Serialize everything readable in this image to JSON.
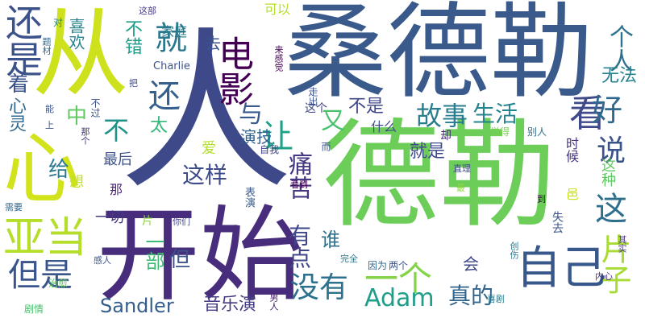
{
  "words": [
    {
      "text": "桑德勒",
      "color": "#3b5a8c",
      "rotated": false
    },
    {
      "text": "德勒",
      "color": "#6cce59",
      "rotated": false
    },
    {
      "text": "人",
      "color": "#3e4989",
      "rotated": false
    },
    {
      "text": "开始",
      "color": "#472d7b",
      "rotated": false
    },
    {
      "text": "从",
      "color": "#cde11d",
      "rotated": false
    },
    {
      "text": "心",
      "color": "#d2e21b",
      "rotated": false
    },
    {
      "text": "亚当",
      "color": "#b5de2b",
      "rotated": false
    },
    {
      "text": "还是",
      "color": "#3b528b",
      "rotated": true
    },
    {
      "text": "电影",
      "color": "#440154",
      "rotated": true
    },
    {
      "text": "就",
      "color": "#2a788e",
      "rotated": false
    },
    {
      "text": "还",
      "color": "#35608d",
      "rotated": false
    },
    {
      "text": "让",
      "color": "#1fa187",
      "rotated": true
    },
    {
      "text": "不",
      "color": "#21918c",
      "rotated": false
    },
    {
      "text": "自己",
      "color": "#38588c",
      "rotated": false
    },
    {
      "text": "片子",
      "color": "#a8db34",
      "rotated": true
    },
    {
      "text": "没有",
      "color": "#2c728e",
      "rotated": false
    },
    {
      "text": "但是",
      "color": "#3a548c",
      "rotated": false
    },
    {
      "text": "这",
      "color": "#2e6f8e",
      "rotated": false
    },
    {
      "text": "一个",
      "color": "#84d44b",
      "rotated": false
    },
    {
      "text": "看",
      "color": "#3e4a89",
      "rotated": false
    },
    {
      "text": "好",
      "color": "#31688e",
      "rotated": false
    },
    {
      "text": "说",
      "color": "#3a538b",
      "rotated": false
    },
    {
      "text": "故事",
      "color": "#287d8e",
      "rotated": false
    },
    {
      "text": "生活",
      "color": "#25838e",
      "rotated": false
    },
    {
      "text": "个人",
      "color": "#2d718e",
      "rotated": true
    },
    {
      "text": "Adam",
      "color": "#1f9e89",
      "rotated": false
    },
    {
      "text": "Sandler",
      "color": "#355e8d",
      "rotated": false
    },
    {
      "text": "真的",
      "color": "#32658e",
      "rotated": false
    },
    {
      "text": "这样",
      "color": "#3e4c8a",
      "rotated": false
    },
    {
      "text": "痛苦",
      "color": "#453781",
      "rotated": true
    },
    {
      "text": "有点",
      "color": "#3f4788",
      "rotated": true
    },
    {
      "text": "与",
      "color": "#38598c",
      "rotated": false
    },
    {
      "text": "又",
      "color": "#4ac16d",
      "rotated": false
    },
    {
      "text": "着",
      "color": "#3b528b",
      "rotated": false
    },
    {
      "text": "心灵",
      "color": "#31688e",
      "rotated": true
    },
    {
      "text": "给",
      "color": "#2a788e",
      "rotated": false
    },
    {
      "text": "中",
      "color": "#5ec962",
      "rotated": false
    },
    {
      "text": "一部",
      "color": "#3fbc73",
      "rotated": true
    },
    {
      "text": "但",
      "color": "#3b528b",
      "rotated": false
    },
    {
      "text": "谁",
      "color": "#2d708e",
      "rotated": false
    },
    {
      "text": "不是",
      "color": "#3f4788",
      "rotated": false
    },
    {
      "text": "就是",
      "color": "#3e4989",
      "rotated": false
    },
    {
      "text": "无法",
      "color": "#26828e",
      "rotated": false
    },
    {
      "text": "音乐演",
      "color": "#443b84",
      "rotated": false
    },
    {
      "text": "不错",
      "color": "#1f9e89",
      "rotated": true
    },
    {
      "text": "喜欢",
      "color": "#26828e",
      "rotated": true
    },
    {
      "text": "演技",
      "color": "#33638d",
      "rotated": false
    },
    {
      "text": "最后",
      "color": "#3b528b",
      "rotated": false
    },
    {
      "text": "这种",
      "color": "#5ec962",
      "rotated": true
    },
    {
      "text": "会",
      "color": "#3f4788",
      "rotated": false
    },
    {
      "text": "太",
      "color": "#35b779",
      "rotated": false
    },
    {
      "text": "一切",
      "color": "#443b84",
      "rotated": false
    },
    {
      "text": "什么",
      "color": "#3e4a89",
      "rotated": false
    },
    {
      "text": "时候",
      "color": "#46327e",
      "rotated": true
    },
    {
      "text": "去",
      "color": "#3a548c",
      "rotated": false
    },
    {
      "text": "家庭",
      "color": "#2a788e",
      "rotated": false
    },
    {
      "text": "可以",
      "color": "#b5de2b",
      "rotated": false
    },
    {
      "text": "爱",
      "color": "#b5de2b",
      "rotated": false
    },
    {
      "text": "想",
      "color": "#c2df23",
      "rotated": true
    },
    {
      "text": "那",
      "color": "#482576",
      "rotated": false
    },
    {
      "text": "片",
      "color": "#8fd744",
      "rotated": false
    },
    {
      "text": "却",
      "color": "#482878",
      "rotated": false
    },
    {
      "text": "觉得",
      "color": "#7ad151",
      "rotated": false
    },
    {
      "text": "别人",
      "color": "#2e6e8e",
      "rotated": false
    },
    {
      "text": "这个",
      "color": "#404688",
      "rotated": false
    },
    {
      "text": "走出",
      "color": "#3a548c",
      "rotated": true
    },
    {
      "text": "因为",
      "color": "#31688e",
      "rotated": false
    },
    {
      "text": "两个",
      "color": "#3a548c",
      "rotated": false
    },
    {
      "text": "完全",
      "color": "#2a788e",
      "rotated": false
    },
    {
      "text": "看到",
      "color": "#440154",
      "rotated": false
    },
    {
      "text": "表演",
      "color": "#38598c",
      "rotated": true
    },
    {
      "text": "男人",
      "color": "#482071",
      "rotated": true
    },
    {
      "text": "自我",
      "color": "#414487",
      "rotated": false
    },
    {
      "text": "而",
      "color": "#3b528b",
      "rotated": true
    },
    {
      "text": "直理",
      "color": "#3e4989",
      "rotated": false
    },
    {
      "text": "最",
      "color": "#8fd744",
      "rotated": false
    },
    {
      "text": "到",
      "color": "#440154",
      "rotated": false
    },
    {
      "text": "失去",
      "color": "#3b528b",
      "rotated": true
    },
    {
      "text": "其实",
      "color": "#46327e",
      "rotated": true
    },
    {
      "text": "内心",
      "color": "#472d7b",
      "rotated": false
    },
    {
      "text": "邑",
      "color": "#c8e020",
      "rotated": false
    },
    {
      "text": "创伤",
      "color": "#2a788e",
      "rotated": true
    },
    {
      "text": "喜剧",
      "color": "#287c8e",
      "rotated": false
    },
    {
      "text": "你们",
      "color": "#404688",
      "rotated": false
    },
    {
      "text": "来感觉",
      "color": "#440154",
      "rotated": true
    },
    {
      "text": "自我",
      "color": "#414487",
      "rotated": false
    },
    {
      "text": "对",
      "color": "#24868e",
      "rotated": false
    },
    {
      "text": "题材",
      "color": "#31688e",
      "rotated": true
    },
    {
      "text": "这部",
      "color": "#453882",
      "rotated": false
    },
    {
      "text": "Charlie",
      "color": "#3b528b",
      "rotated": false
    },
    {
      "text": "把",
      "color": "#3e4989",
      "rotated": false
    },
    {
      "text": "那个",
      "color": "#46327e",
      "rotated": true
    },
    {
      "text": "能",
      "color": "#3b528b",
      "rotated": false
    },
    {
      "text": "上",
      "color": "#3b528b",
      "rotated": false
    },
    {
      "text": "不过",
      "color": "#3b528b",
      "rotated": true
    },
    {
      "text": "需要",
      "color": "#31688e",
      "rotated": false
    },
    {
      "text": "感人",
      "color": "#3a548c",
      "rotated": false
    },
    {
      "text": "治愈",
      "color": "#5ec962",
      "rotated": false
    },
    {
      "text": "剧情",
      "color": "#4ac16d",
      "rotated": false
    }
  ]
}
